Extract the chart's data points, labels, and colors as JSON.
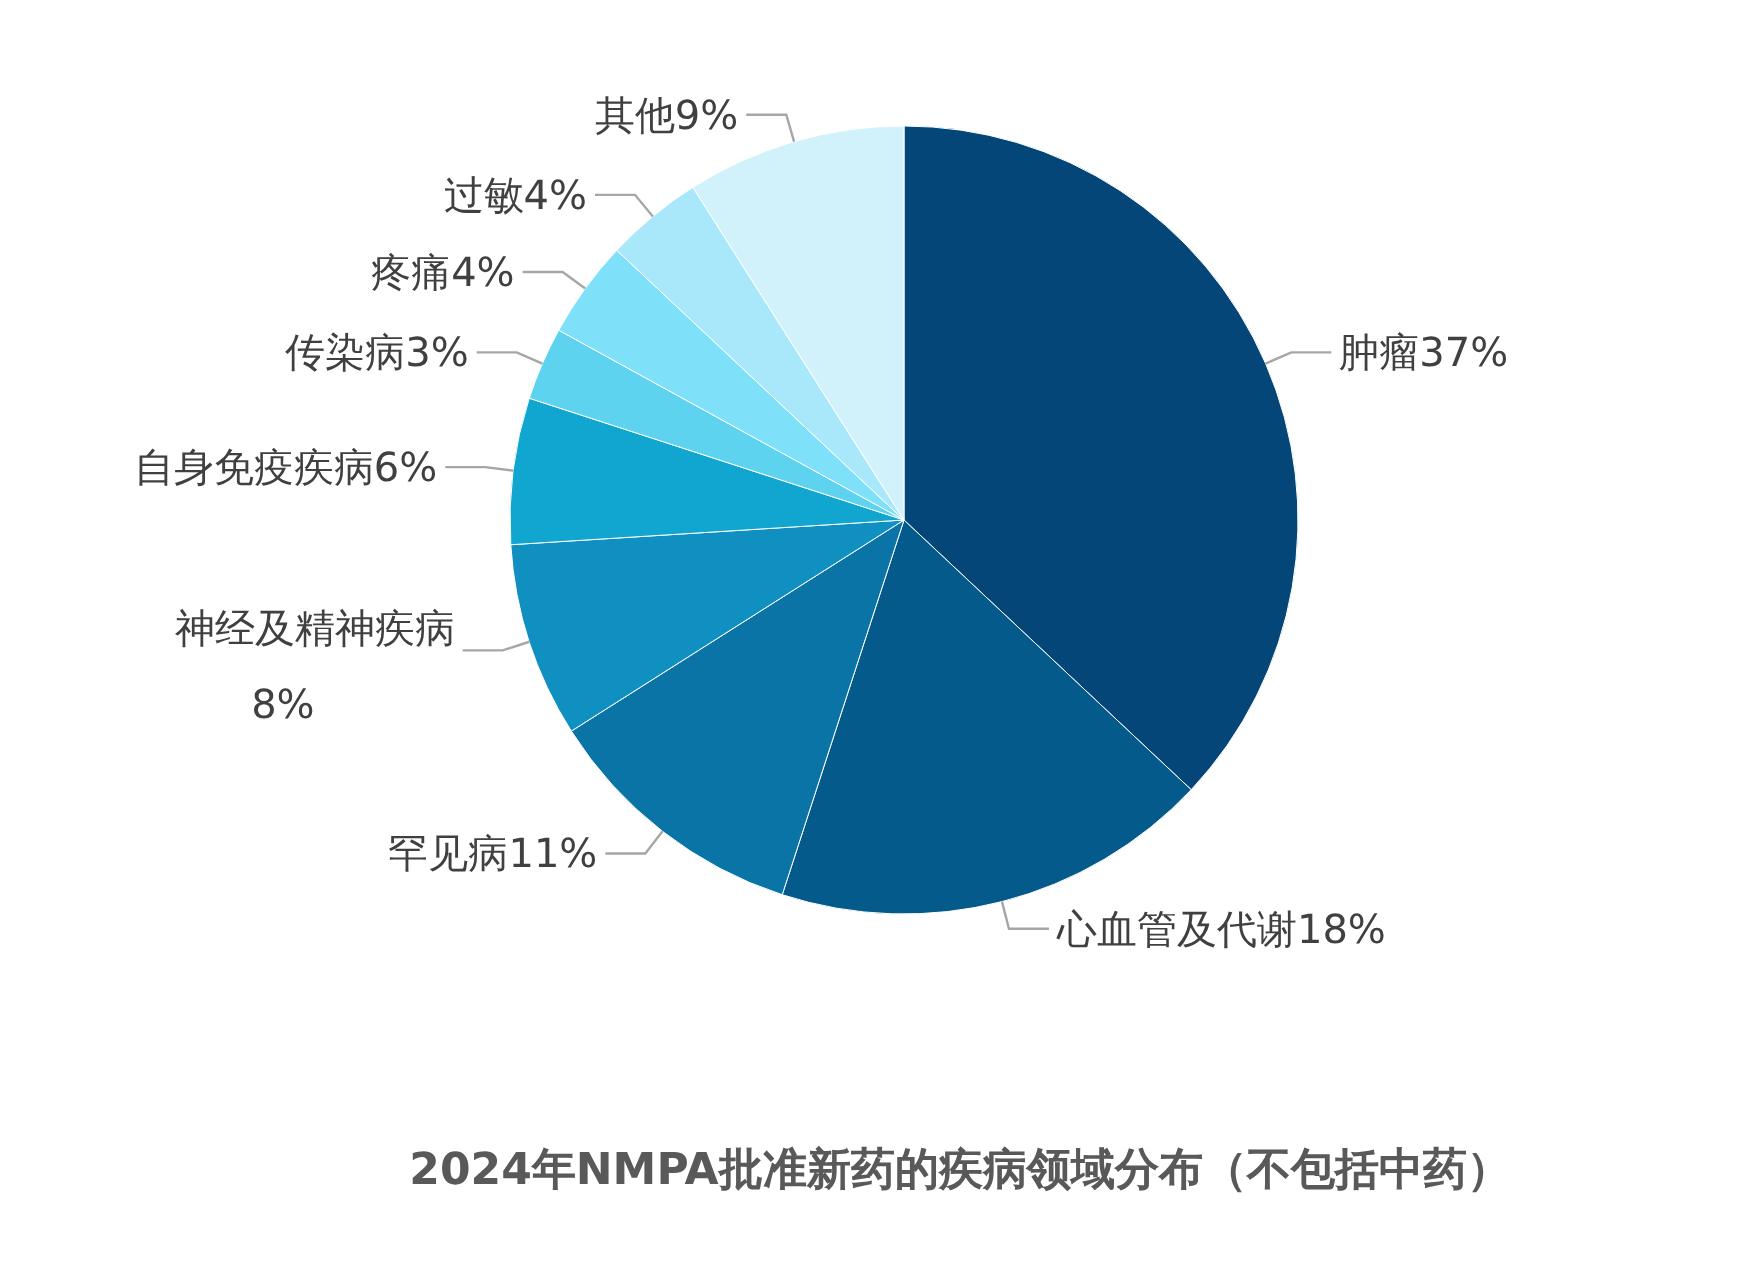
{
  "chart_data": {
    "type": "pie",
    "title": "2024年NMPA批准新药的疾病领域分布（不包括中药）",
    "categories": [
      "肿瘤",
      "心血管及代谢",
      "罕见病",
      "神经及精神疾病",
      "自身免疫疾病",
      "传染病",
      "疼痛",
      "过敏",
      "其他"
    ],
    "values": [
      37,
      18,
      11,
      8,
      6,
      3,
      4,
      4,
      9
    ],
    "colors": [
      "#034677",
      "#055a8c",
      "#0a74a6",
      "#1090c0",
      "#11a6d0",
      "#5dd3f0",
      "#7fe0fa",
      "#a9e8fa",
      "#d1f2fb"
    ],
    "value_labels": [
      "37%",
      "18%",
      "11%",
      "8%",
      "6%",
      "3%",
      "4%",
      "4%",
      "9%"
    ]
  }
}
